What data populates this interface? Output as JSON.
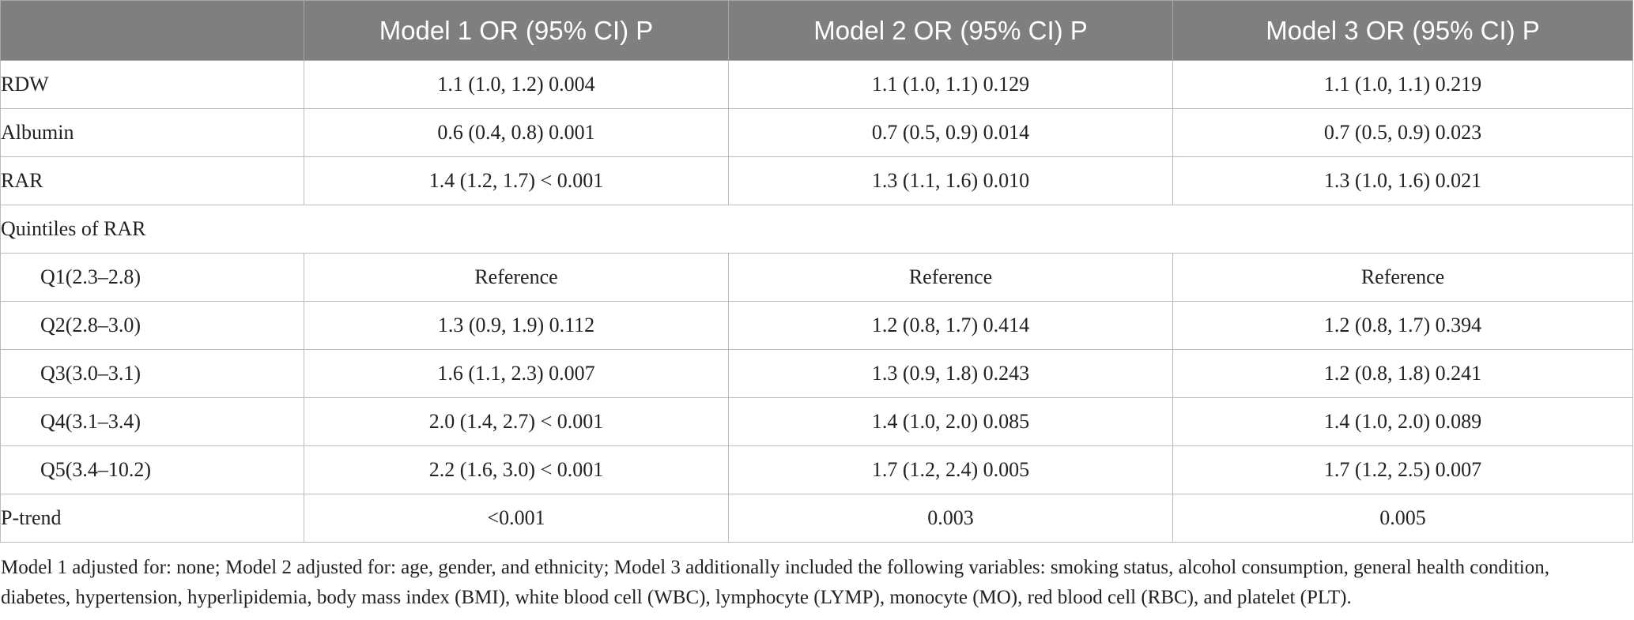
{
  "table": {
    "headers": [
      "",
      "Model 1 OR (95% CI) P",
      "Model 2 OR (95% CI) P",
      "Model 3 OR (95% CI) P"
    ],
    "rows": [
      {
        "label": "RDW",
        "m1": "1.1 (1.0, 1.2) 0.004",
        "m2": "1.1 (1.0, 1.1) 0.129",
        "m3": "1.1 (1.0, 1.1) 0.219"
      },
      {
        "label": "Albumin",
        "m1": "0.6 (0.4, 0.8) 0.001",
        "m2": "0.7 (0.5, 0.9) 0.014",
        "m3": "0.7 (0.5, 0.9) 0.023"
      },
      {
        "label": "RAR",
        "m1": "1.4 (1.2, 1.7) < 0.001",
        "m2": "1.3 (1.1, 1.6) 0.010",
        "m3": "1.3 (1.0, 1.6) 0.021"
      },
      {
        "label": "Quintiles of RAR"
      },
      {
        "label": "Q1(2.3–2.8)",
        "m1": "Reference",
        "m2": "Reference",
        "m3": "Reference"
      },
      {
        "label": "Q2(2.8–3.0)",
        "m1": "1.3 (0.9, 1.9) 0.112",
        "m2": "1.2 (0.8, 1.7) 0.414",
        "m3": "1.2 (0.8, 1.7) 0.394"
      },
      {
        "label": "Q3(3.0–3.1)",
        "m1": "1.6 (1.1, 2.3) 0.007",
        "m2": "1.3 (0.9, 1.8) 0.243",
        "m3": "1.2 (0.8, 1.8) 0.241"
      },
      {
        "label": "Q4(3.1–3.4)",
        "m1": "2.0 (1.4, 2.7) < 0.001",
        "m2": "1.4 (1.0, 2.0) 0.085",
        "m3": "1.4 (1.0, 2.0) 0.089"
      },
      {
        "label": "Q5(3.4–10.2)",
        "m1": "2.2 (1.6, 3.0) < 0.001",
        "m2": "1.7 (1.2, 2.4) 0.005",
        "m3": "1.7 (1.2, 2.5) 0.007"
      },
      {
        "label": "P-trend",
        "m1": "<0.001",
        "m2": "0.003",
        "m3": "0.005"
      }
    ]
  },
  "footnote": "Model 1 adjusted for: none; Model 2 adjusted for: age, gender, and ethnicity; Model 3 additionally included the following variables: smoking status, alcohol consumption, general health condition, diabetes, hypertension, hyperlipidemia, body mass index (BMI), white blood cell (WBC), lymphocyte (LYMP), monocyte (MO), red blood cell (RBC), and platelet (PLT)."
}
